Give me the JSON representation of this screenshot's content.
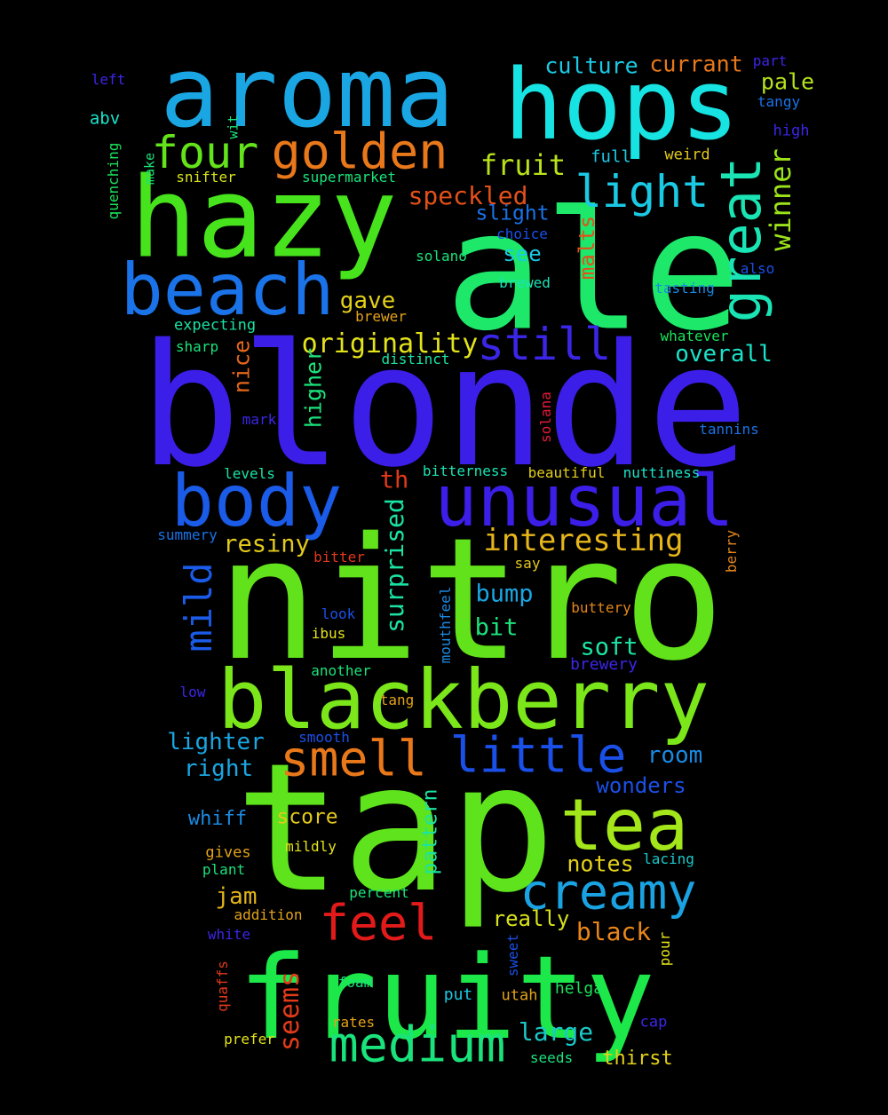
{
  "words": [
    {
      "text": "blonde",
      "color": "#3b1ee8"
    },
    {
      "text": "nitro",
      "color": "#62e21a"
    },
    {
      "text": "tap",
      "color": "#5ee31c"
    },
    {
      "text": "ale",
      "color": "#1de86a"
    },
    {
      "text": "fruity",
      "color": "#1de849"
    },
    {
      "text": "hazy",
      "color": "#47e31c"
    },
    {
      "text": "aroma",
      "color": "#1aa6e3"
    },
    {
      "text": "hops",
      "color": "#17e3e3"
    },
    {
      "text": "blackberry",
      "color": "#7be61a"
    },
    {
      "text": "beach",
      "color": "#1a73e8"
    },
    {
      "text": "body",
      "color": "#1a5be8"
    },
    {
      "text": "unusual",
      "color": "#3b1ee8"
    },
    {
      "text": "tea",
      "color": "#a3e61a"
    },
    {
      "text": "creamy",
      "color": "#1aa3e3"
    },
    {
      "text": "golden",
      "color": "#e8781a"
    },
    {
      "text": "medium",
      "color": "#1ae37b"
    },
    {
      "text": "feel",
      "color": "#e31a1a"
    },
    {
      "text": "smell",
      "color": "#e8781a"
    },
    {
      "text": "little",
      "color": "#1a50e8"
    },
    {
      "text": "four",
      "color": "#63e31a"
    },
    {
      "text": "light",
      "color": "#1ac9e3"
    },
    {
      "text": "great",
      "color": "#1ae3b4"
    },
    {
      "text": "still",
      "color": "#3b26e8"
    },
    {
      "text": "interesting",
      "color": "#e8b61a"
    },
    {
      "text": "mild",
      "color": "#1a5be8"
    },
    {
      "text": "fruit",
      "color": "#b8e31a"
    },
    {
      "text": "originality",
      "color": "#e3e31a"
    },
    {
      "text": "speckled",
      "color": "#e3501a"
    },
    {
      "text": "winner",
      "color": "#9be31a"
    },
    {
      "text": "culture",
      "color": "#1ac9e3"
    },
    {
      "text": "currant",
      "color": "#e8781a"
    },
    {
      "text": "pale",
      "color": "#b4e31a"
    },
    {
      "text": "overall",
      "color": "#1ae3c9"
    },
    {
      "text": "resiny",
      "color": "#e3c91a"
    },
    {
      "text": "surprised",
      "color": "#1ae3a3"
    },
    {
      "text": "seems",
      "color": "#e33a1a"
    },
    {
      "text": "black",
      "color": "#e8861a"
    },
    {
      "text": "large",
      "color": "#1ac9c9"
    },
    {
      "text": "soft",
      "color": "#1ae3a3"
    },
    {
      "text": "bump",
      "color": "#1aa6e3"
    },
    {
      "text": "bit",
      "color": "#1ae37b"
    },
    {
      "text": "gave",
      "color": "#e3d01a"
    },
    {
      "text": "nice",
      "color": "#e3661a"
    },
    {
      "text": "higher",
      "color": "#1ae37b"
    },
    {
      "text": "malts",
      "color": "#e3501a"
    },
    {
      "text": "see",
      "color": "#1ac9e3"
    },
    {
      "text": "slight",
      "color": "#1a73e8"
    },
    {
      "text": "th",
      "color": "#e3391a"
    },
    {
      "text": "lighter",
      "color": "#1aa6e3"
    },
    {
      "text": "right",
      "color": "#1aa6e3"
    },
    {
      "text": "room",
      "color": "#1a8ae3"
    },
    {
      "text": "wonders",
      "color": "#1a50e8"
    },
    {
      "text": "notes",
      "color": "#e3d01a"
    },
    {
      "text": "jam",
      "color": "#e3b61a"
    },
    {
      "text": "pattern",
      "color": "#1ae3a3"
    },
    {
      "text": "score",
      "color": "#e3c91a"
    },
    {
      "text": "really",
      "color": "#d8e31a"
    },
    {
      "text": "whiff",
      "color": "#1a8ae3"
    },
    {
      "text": "thirst",
      "color": "#e3d01a"
    },
    {
      "text": "full",
      "color": "#1ac9e3"
    },
    {
      "text": "weird",
      "color": "#e3c91a"
    },
    {
      "text": "left",
      "color": "#3b26e8"
    },
    {
      "text": "part",
      "color": "#3b26e8"
    },
    {
      "text": "tangy",
      "color": "#1a73e8"
    },
    {
      "text": "high",
      "color": "#3b26e8"
    },
    {
      "text": "abv",
      "color": "#1ae3c9"
    },
    {
      "text": "wit",
      "color": "#1ae37b"
    },
    {
      "text": "make",
      "color": "#1ae37b"
    },
    {
      "text": "quenching",
      "color": "#1ae35b"
    },
    {
      "text": "snifter",
      "color": "#d8e31a"
    },
    {
      "text": "supermarket",
      "color": "#1ae37b"
    },
    {
      "text": "choice",
      "color": "#1a50e8"
    },
    {
      "text": "solano",
      "color": "#1ae37b"
    },
    {
      "text": "also",
      "color": "#1a50e8"
    },
    {
      "text": "brewed",
      "color": "#1ae3b4"
    },
    {
      "text": "tasting",
      "color": "#1a8ae3"
    },
    {
      "text": "expecting",
      "color": "#1ae3a3"
    },
    {
      "text": "brewer",
      "color": "#e3a31a"
    },
    {
      "text": "sharp",
      "color": "#1ae37b"
    },
    {
      "text": "distinct",
      "color": "#1ae3a3"
    },
    {
      "text": "whatever",
      "color": "#1ae35b"
    },
    {
      "text": "mark",
      "color": "#3b26e8"
    },
    {
      "text": "solana",
      "color": "#e31a3b"
    },
    {
      "text": "tannins",
      "color": "#1a73e8"
    },
    {
      "text": "levels",
      "color": "#1ae3a3"
    },
    {
      "text": "bitterness",
      "color": "#1ae3b4"
    },
    {
      "text": "beautiful",
      "color": "#e3d01a"
    },
    {
      "text": "nuttiness",
      "color": "#1ae3c9"
    },
    {
      "text": "summery",
      "color": "#1a73e8"
    },
    {
      "text": "bitter",
      "color": "#e3391a"
    },
    {
      "text": "say",
      "color": "#e3c91a"
    },
    {
      "text": "berry",
      "color": "#e3861a"
    },
    {
      "text": "look",
      "color": "#1a50e8"
    },
    {
      "text": "mouthfeel",
      "color": "#1a8ae3"
    },
    {
      "text": "buttery",
      "color": "#e3861a"
    },
    {
      "text": "ibus",
      "color": "#e3e31a"
    },
    {
      "text": "another",
      "color": "#1ae37b"
    },
    {
      "text": "brewery",
      "color": "#3b26e8"
    },
    {
      "text": "low",
      "color": "#3b26e8"
    },
    {
      "text": "tang",
      "color": "#e3a31a"
    },
    {
      "text": "smooth",
      "color": "#1a50e8"
    },
    {
      "text": "gives",
      "color": "#e3a31a"
    },
    {
      "text": "mildly",
      "color": "#e3e31a"
    },
    {
      "text": "plant",
      "color": "#1ae37b"
    },
    {
      "text": "lacing",
      "color": "#1ac9c9"
    },
    {
      "text": "percent",
      "color": "#1ae37b"
    },
    {
      "text": "addition",
      "color": "#e3a31a"
    },
    {
      "text": "white",
      "color": "#3b26e8"
    },
    {
      "text": "sweet",
      "color": "#1a50e8"
    },
    {
      "text": "pour",
      "color": "#e3e31a"
    },
    {
      "text": "quaffs",
      "color": "#e3391a"
    },
    {
      "text": "foam",
      "color": "#1ae37b"
    },
    {
      "text": "put",
      "color": "#1ac9e3"
    },
    {
      "text": "utah",
      "color": "#e3a31a"
    },
    {
      "text": "helga",
      "color": "#1ae35b"
    },
    {
      "text": "rates",
      "color": "#e3a31a"
    },
    {
      "text": "cap",
      "color": "#3b26e8"
    },
    {
      "text": "prefer",
      "color": "#e3e31a"
    },
    {
      "text": "seeds",
      "color": "#1ae37b"
    }
  ]
}
